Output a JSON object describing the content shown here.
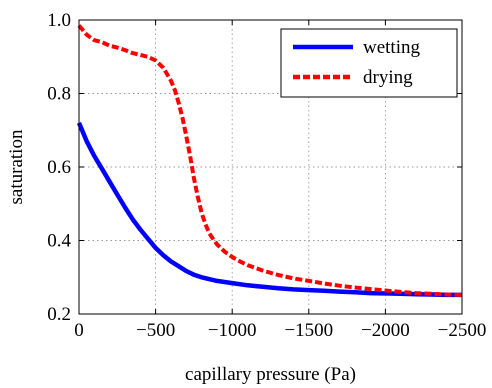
{
  "chart_data": {
    "type": "line",
    "title": "",
    "xlabel": "capillary pressure (Pa)",
    "ylabel": "saturation",
    "xlim": [
      0,
      -2500
    ],
    "ylim": [
      0.2,
      1.0
    ],
    "xticks": [
      0,
      -500,
      -1000,
      -1500,
      -2000,
      -2500
    ],
    "xtick_labels": [
      "0",
      "−500",
      "−1000",
      "−1500",
      "−2000",
      "−2500"
    ],
    "yticks": [
      0.2,
      0.4,
      0.6,
      0.8,
      1.0
    ],
    "ytick_labels": [
      "0.2",
      "0.4",
      "0.6",
      "0.8",
      "1.0"
    ],
    "grid": true,
    "legend_position": "top-right",
    "series": [
      {
        "name": "wetting",
        "color": "#0000ff",
        "style": "solid",
        "x": [
          0,
          -50,
          -100,
          -150,
          -200,
          -250,
          -300,
          -350,
          -400,
          -450,
          -500,
          -550,
          -600,
          -650,
          -700,
          -750,
          -800,
          -900,
          -1000,
          -1100,
          -1200,
          -1300,
          -1400,
          -1500,
          -1600,
          -1700,
          -1800,
          -1900,
          -2000,
          -2100,
          -2200,
          -2300,
          -2400,
          -2500
        ],
        "y": [
          0.72,
          0.67,
          0.63,
          0.595,
          0.56,
          0.525,
          0.49,
          0.458,
          0.43,
          0.405,
          0.38,
          0.36,
          0.343,
          0.33,
          0.317,
          0.307,
          0.3,
          0.29,
          0.284,
          0.278,
          0.274,
          0.27,
          0.267,
          0.265,
          0.263,
          0.261,
          0.259,
          0.257,
          0.256,
          0.255,
          0.254,
          0.253,
          0.252,
          0.252
        ]
      },
      {
        "name": "drying",
        "color": "#ff0000",
        "style": "dashed",
        "x": [
          0,
          -50,
          -100,
          -150,
          -200,
          -250,
          -300,
          -350,
          -400,
          -450,
          -500,
          -550,
          -600,
          -625,
          -650,
          -675,
          -700,
          -725,
          -750,
          -775,
          -800,
          -825,
          -850,
          -875,
          -900,
          -950,
          -1000,
          -1050,
          -1100,
          -1200,
          -1300,
          -1400,
          -1500,
          -1600,
          -1700,
          -1800,
          -1900,
          -2000,
          -2100,
          -2200,
          -2300,
          -2400,
          -2500
        ],
        "y": [
          0.985,
          0.96,
          0.945,
          0.94,
          0.93,
          0.925,
          0.918,
          0.91,
          0.905,
          0.9,
          0.89,
          0.87,
          0.835,
          0.81,
          0.775,
          0.735,
          0.685,
          0.63,
          0.57,
          0.52,
          0.475,
          0.445,
          0.42,
          0.405,
          0.39,
          0.37,
          0.355,
          0.343,
          0.333,
          0.318,
          0.306,
          0.297,
          0.29,
          0.283,
          0.277,
          0.272,
          0.268,
          0.264,
          0.26,
          0.257,
          0.255,
          0.253,
          0.252
        ]
      }
    ]
  }
}
